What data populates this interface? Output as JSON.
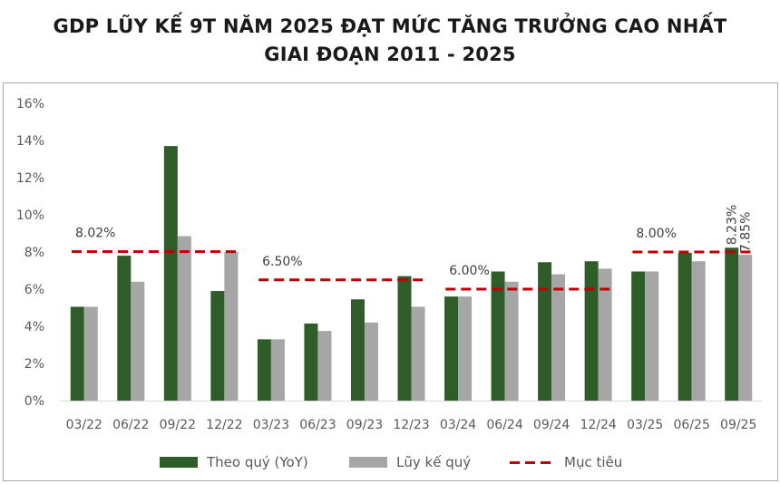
{
  "title": {
    "line1": "GDP LŨY KẾ 9T NĂM 2025 ĐẠT MỨC TĂNG TRƯỞNG CAO NHẤT",
    "line2": "GIAI ĐOẠN 2011 - 2025"
  },
  "colors": {
    "quarterly": "#2e5d2a",
    "cumulative": "#a6a6a6",
    "target": "#c00000",
    "grid": "#d9d9d9"
  },
  "chart_data": {
    "type": "bar",
    "categories": [
      "03/22",
      "06/22",
      "09/22",
      "12/22",
      "03/23",
      "06/23",
      "09/23",
      "12/23",
      "03/24",
      "06/24",
      "09/24",
      "12/24",
      "03/25",
      "06/25",
      "09/25"
    ],
    "series": [
      {
        "name": "Theo quý (YoY)",
        "values": [
          5.05,
          7.8,
          13.7,
          5.9,
          3.3,
          4.15,
          5.45,
          6.7,
          5.6,
          6.95,
          7.45,
          7.5,
          6.95,
          7.95,
          8.23
        ]
      },
      {
        "name": "Lũy kế quý",
        "values": [
          5.05,
          6.4,
          8.85,
          8.0,
          3.3,
          3.75,
          4.2,
          5.05,
          5.6,
          6.4,
          6.8,
          7.1,
          6.95,
          7.5,
          7.85
        ]
      }
    ],
    "targets": [
      {
        "name": "Mục tiêu",
        "value": 8.02,
        "label": "8.02%",
        "from": "03/22",
        "to": "12/22"
      },
      {
        "name": "Mục tiêu",
        "value": 6.5,
        "label": "6.50%",
        "from": "03/23",
        "to": "12/23"
      },
      {
        "name": "Mục tiêu",
        "value": 6.0,
        "label": "6.00%",
        "from": "03/24",
        "to": "12/24"
      },
      {
        "name": "Mục tiêu",
        "value": 8.0,
        "label": "8.00%",
        "from": "03/25",
        "to": "09/25"
      }
    ],
    "data_labels": [
      {
        "category": "09/25",
        "series": "Theo quý (YoY)",
        "text": "8.23%"
      },
      {
        "category": "09/25",
        "series": "Lũy kế quý",
        "text": "7.85%"
      }
    ],
    "y_ticks": [
      "0%",
      "2%",
      "4%",
      "6%",
      "8%",
      "10%",
      "12%",
      "14%",
      "16%"
    ],
    "ylim": [
      0,
      16
    ],
    "grid": false,
    "legend_position": "bottom"
  },
  "legend": {
    "quarterly_label": "Theo quý (YoY)",
    "cumulative_label": "Lũy kế quý",
    "target_label": "Mục tiêu"
  }
}
